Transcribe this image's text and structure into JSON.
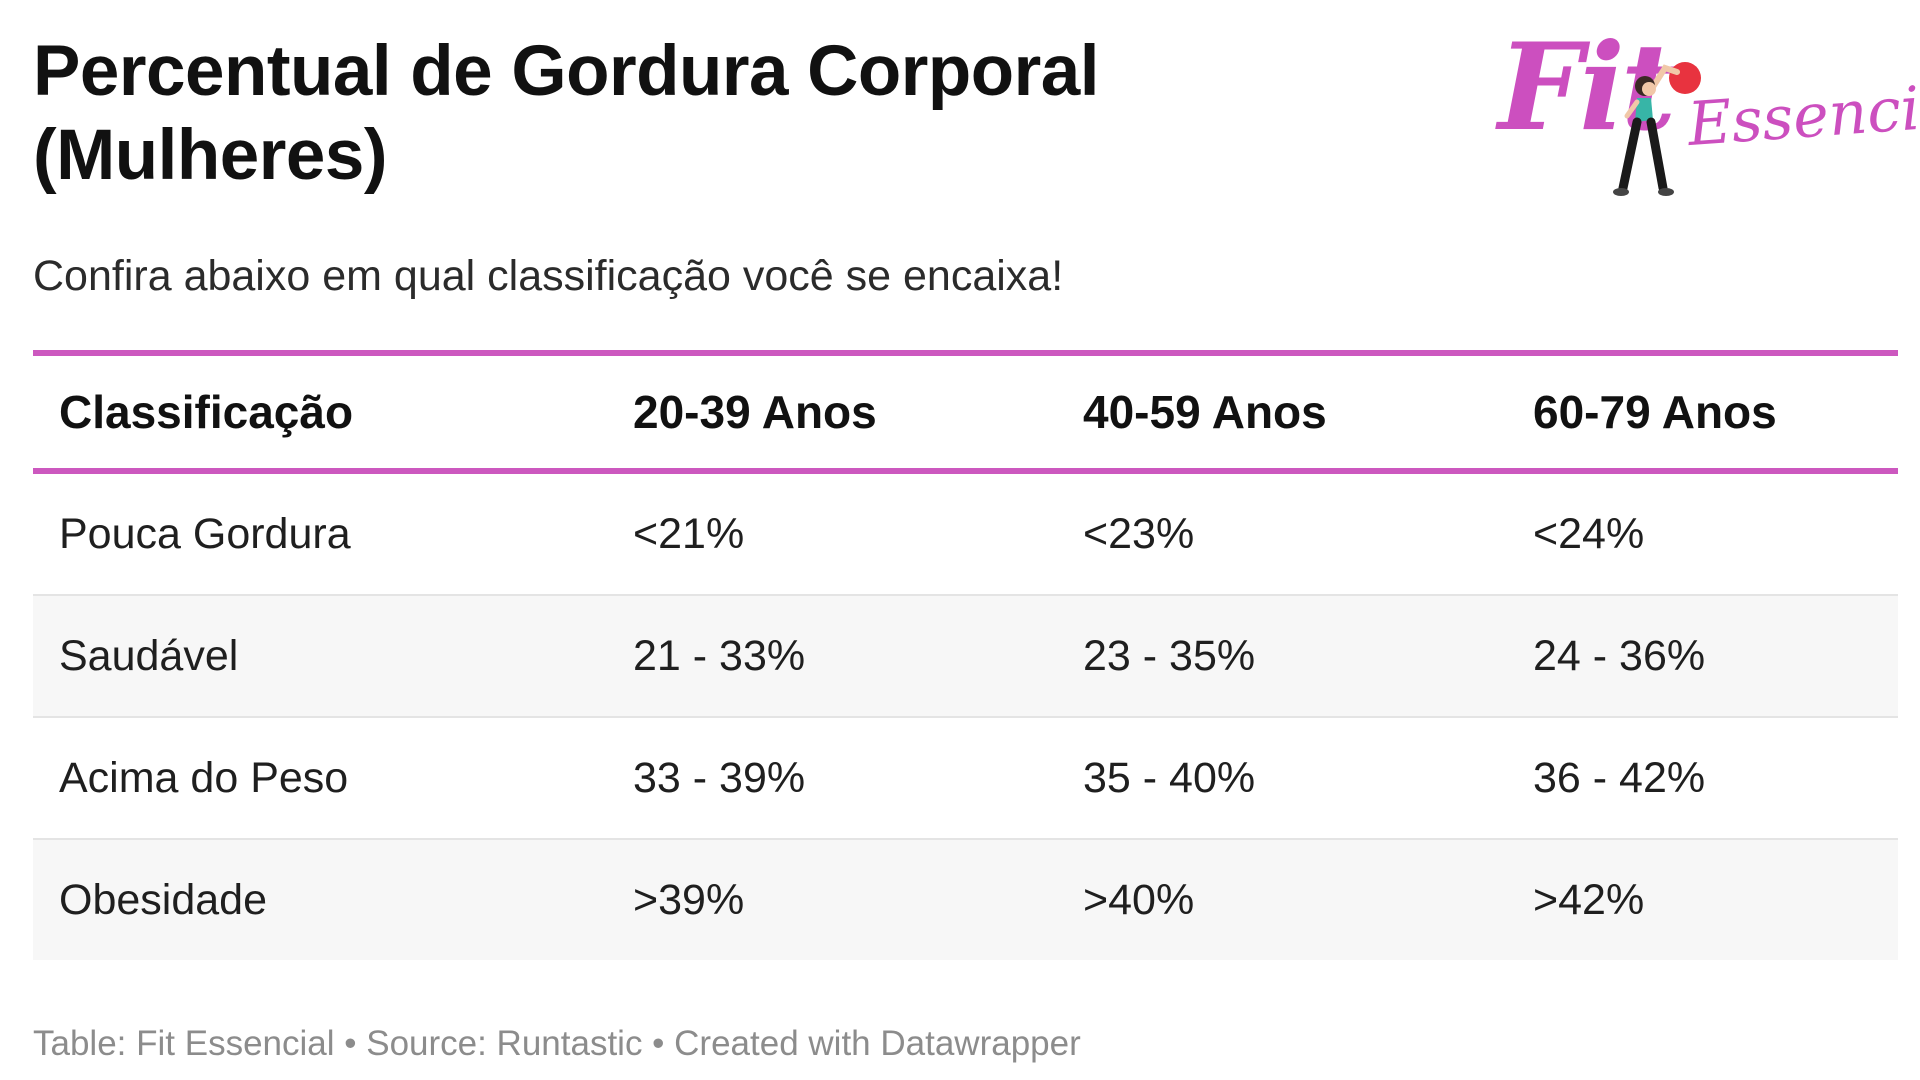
{
  "title_line1": "Percentual de Gordura Corporal",
  "title_line2": "(Mulheres)",
  "subtitle": "Confira abaixo em qual classificação você se encaixa!",
  "logo": {
    "word1": "Fit",
    "word2": "Essencial",
    "figure": "woman-exercising-with-ball-icon"
  },
  "colors": {
    "accent": "#cc58bf",
    "ball": "#e8333f",
    "stripe": "#f7f7f7"
  },
  "chart_data": {
    "type": "table",
    "columns": [
      "Classificação",
      "20-39 Anos",
      "40-59 Anos",
      "60-79 Anos"
    ],
    "rows": [
      [
        "Pouca Gordura",
        "<21%",
        "<23%",
        "<24%"
      ],
      [
        "Saudável",
        "21 - 33%",
        "23 - 35%",
        "24 - 36%"
      ],
      [
        "Acima do Peso",
        "33 - 39%",
        "35 - 40%",
        "36 - 42%"
      ],
      [
        "Obesidade",
        ">39%",
        ">40%",
        ">42%"
      ]
    ]
  },
  "footer": "Table: Fit Essencial • Source: Runtastic • Created with Datawrapper"
}
